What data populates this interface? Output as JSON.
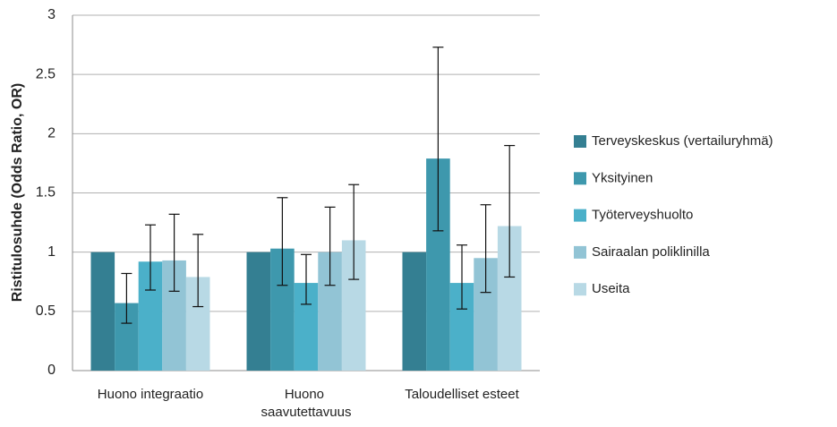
{
  "chart_data": {
    "type": "bar",
    "ylabel": "Ristitulosuhde (Odds Ratio, OR)",
    "categories": [
      "Huono integraatio",
      "Huono saavutettavuus",
      "Taloudelliset esteet"
    ],
    "ylim": [
      0,
      3
    ],
    "yticks": [
      0,
      0.5,
      1,
      1.5,
      2,
      2.5,
      3
    ],
    "grid": true,
    "legend": "right",
    "series": [
      {
        "name": "Terveyskeskus (vertailuryhmä)",
        "color": "#347f92",
        "values": [
          1,
          1,
          1
        ],
        "lower": [
          null,
          null,
          null
        ],
        "upper": [
          null,
          null,
          null
        ]
      },
      {
        "name": "Yksityinen",
        "color": "#3e98ad",
        "values": [
          0.57,
          1.03,
          1.79
        ],
        "lower": [
          0.4,
          0.72,
          1.18
        ],
        "upper": [
          0.82,
          1.46,
          2.73
        ]
      },
      {
        "name": "Työterveyshuolto",
        "color": "#4bb0c9",
        "values": [
          0.92,
          0.74,
          0.74
        ],
        "lower": [
          0.68,
          0.56,
          0.52
        ],
        "upper": [
          1.23,
          0.98,
          1.06
        ]
      },
      {
        "name": "Sairaalan poliklinilla",
        "color": "#92c4d5",
        "values": [
          0.93,
          1.0,
          0.95
        ],
        "lower": [
          0.67,
          0.72,
          0.66
        ],
        "upper": [
          1.32,
          1.38,
          1.4
        ]
      },
      {
        "name": "Useita",
        "color": "#b8d9e5",
        "values": [
          0.79,
          1.1,
          1.22
        ],
        "lower": [
          0.54,
          0.77,
          0.79
        ],
        "upper": [
          1.15,
          1.57,
          1.9
        ]
      }
    ]
  }
}
